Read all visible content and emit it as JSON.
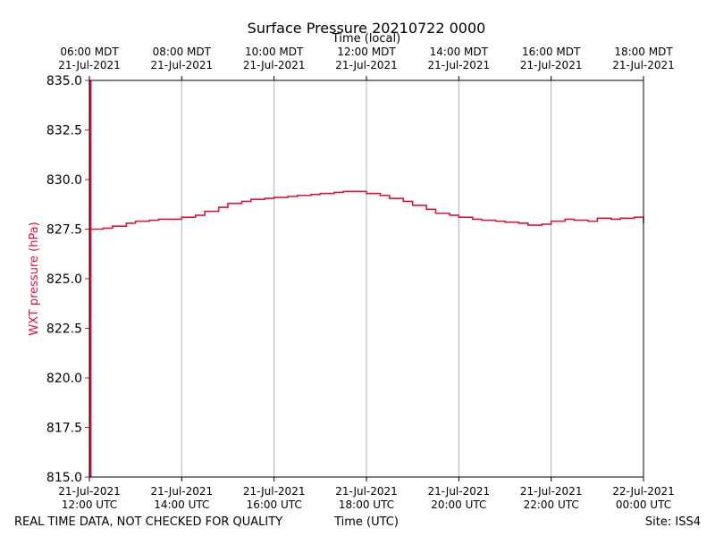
{
  "chart_data": {
    "type": "line",
    "title": "Surface Pressure 20210722 0000",
    "xlabel": "Time (UTC)",
    "xlabel_top": "Time (local)",
    "ylabel": "WXT pressure (hPa)",
    "ylim": [
      815.0,
      835.0
    ],
    "xlim_hours": [
      0,
      12
    ],
    "yticks": [
      "835.0",
      "832.5",
      "830.0",
      "827.5",
      "825.0",
      "822.5",
      "820.0",
      "817.5",
      "815.0"
    ],
    "xticks_bottom": [
      {
        "date": "21-Jul-2021",
        "time": "12:00 UTC"
      },
      {
        "date": "21-Jul-2021",
        "time": "14:00 UTC"
      },
      {
        "date": "21-Jul-2021",
        "time": "16:00 UTC"
      },
      {
        "date": "21-Jul-2021",
        "time": "18:00 UTC"
      },
      {
        "date": "21-Jul-2021",
        "time": "20:00 UTC"
      },
      {
        "date": "21-Jul-2021",
        "time": "22:00 UTC"
      },
      {
        "date": "22-Jul-2021",
        "time": "00:00 UTC"
      }
    ],
    "xticks_top": [
      {
        "time": "06:00 MDT",
        "date": "21-Jul-2021"
      },
      {
        "time": "08:00 MDT",
        "date": "21-Jul-2021"
      },
      {
        "time": "10:00 MDT",
        "date": "21-Jul-2021"
      },
      {
        "time": "12:00 MDT",
        "date": "21-Jul-2021"
      },
      {
        "time": "14:00 MDT",
        "date": "21-Jul-2021"
      },
      {
        "time": "16:00 MDT",
        "date": "21-Jul-2021"
      },
      {
        "time": "18:00 MDT",
        "date": "21-Jul-2021"
      }
    ],
    "grid": true,
    "line_color": "#dc143c",
    "series": [
      {
        "name": "WXT pressure",
        "x_hours": [
          0,
          0.3,
          0.5,
          0.8,
          1.0,
          1.3,
          1.5,
          1.8,
          2.0,
          2.3,
          2.5,
          2.8,
          3.0,
          3.3,
          3.5,
          3.8,
          4.0,
          4.3,
          4.5,
          4.8,
          5.0,
          5.3,
          5.5,
          5.8,
          6.0,
          6.3,
          6.5,
          6.8,
          7.0,
          7.3,
          7.5,
          7.8,
          8.0,
          8.3,
          8.5,
          8.8,
          9.0,
          9.3,
          9.5,
          9.8,
          10.0,
          10.3,
          10.5,
          10.8,
          11.0,
          11.3,
          11.5,
          11.8,
          12.0
        ],
        "values": [
          827.5,
          827.55,
          827.65,
          827.8,
          827.9,
          827.95,
          828.0,
          828.0,
          828.1,
          828.2,
          828.4,
          828.6,
          828.8,
          828.9,
          829.0,
          829.05,
          829.1,
          829.15,
          829.2,
          829.25,
          829.3,
          829.35,
          829.4,
          829.4,
          829.3,
          829.2,
          829.05,
          828.9,
          828.7,
          828.5,
          828.3,
          828.2,
          828.1,
          828.0,
          827.95,
          827.9,
          827.85,
          827.8,
          827.7,
          827.75,
          827.9,
          828.0,
          827.95,
          827.9,
          828.05,
          828.0,
          828.05,
          828.1,
          827.8
        ]
      }
    ],
    "spike": {
      "x_hours": 0,
      "from": 815.0,
      "to": 835.0
    }
  },
  "footer": {
    "left_note": "REAL TIME DATA, NOT CHECKED FOR QUALITY",
    "site": "Site: ISS4"
  }
}
